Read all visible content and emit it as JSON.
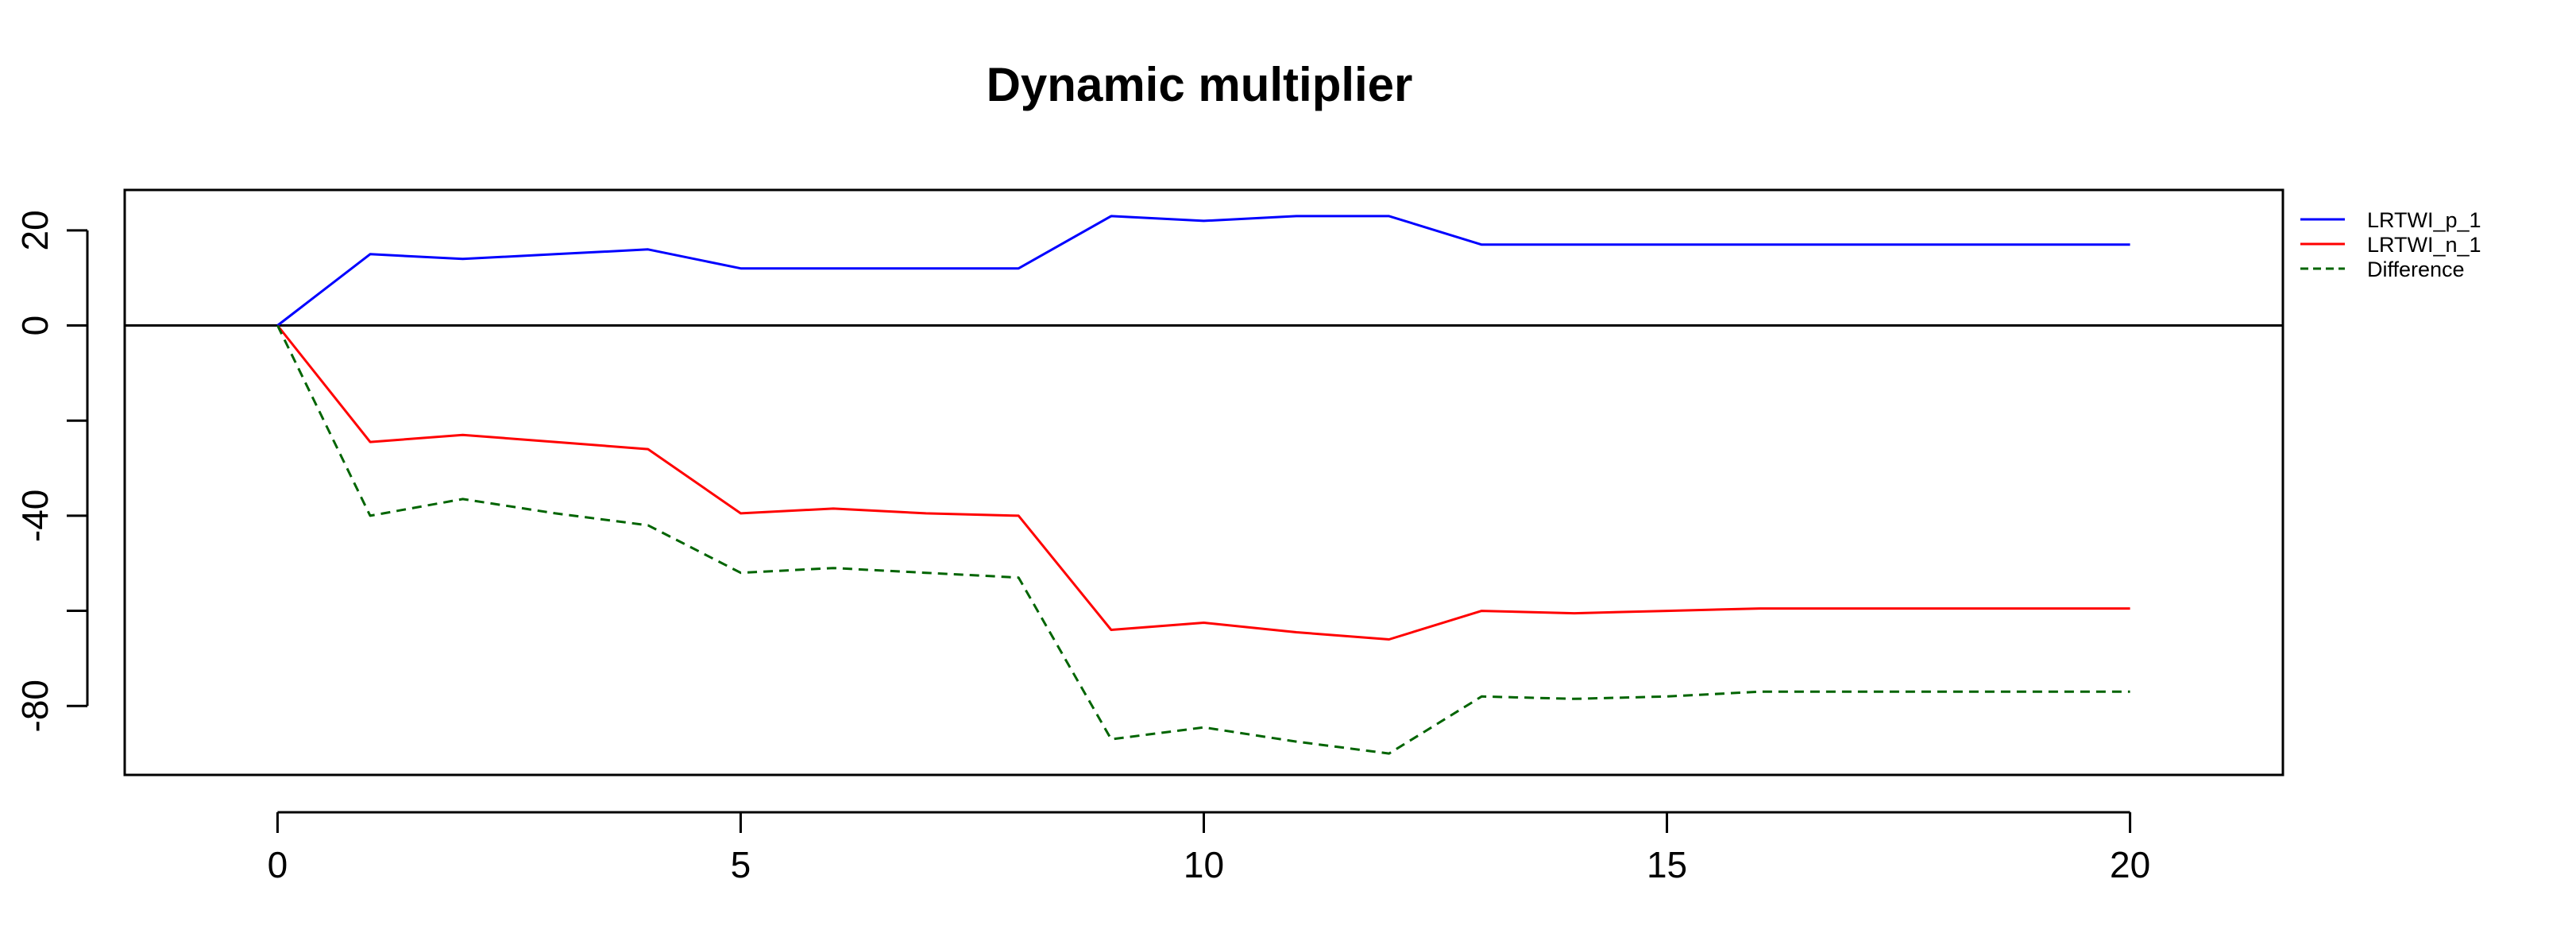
{
  "chart_data": {
    "type": "line",
    "title": "Dynamic multiplier",
    "xlabel": "",
    "ylabel": "",
    "xlim": [
      -1.65,
      21.65
    ],
    "ylim": [
      -94.5,
      28.5
    ],
    "x_ticks": [
      {
        "value": 0,
        "label": "0"
      },
      {
        "value": 5,
        "label": "5"
      },
      {
        "value": 10,
        "label": "10"
      },
      {
        "value": 15,
        "label": "15"
      },
      {
        "value": 20,
        "label": "20"
      }
    ],
    "y_ticks": [
      {
        "value": 20,
        "label": "20"
      },
      {
        "value": 0,
        "label": "0"
      },
      {
        "value": -20,
        "label": ""
      },
      {
        "value": -40,
        "label": "-40"
      },
      {
        "value": -60,
        "label": ""
      },
      {
        "value": -80,
        "label": "-80"
      }
    ],
    "hline": 0,
    "grid": false,
    "legend_position": "right",
    "x": [
      0,
      1,
      2,
      3,
      4,
      5,
      6,
      7,
      8,
      9,
      10,
      11,
      12,
      13,
      14,
      15,
      16,
      17,
      18,
      19,
      20
    ],
    "series": [
      {
        "name": "LRTWI_p_1",
        "color": "#0000ff",
        "dash": "solid",
        "values": [
          0,
          15,
          14,
          15,
          16,
          12,
          12,
          12,
          12,
          23,
          22,
          23,
          23,
          17,
          17,
          17,
          17,
          17,
          17,
          17,
          17
        ]
      },
      {
        "name": "LRTWI_n_1",
        "color": "#ff0000",
        "dash": "solid",
        "values": [
          0,
          -24.5,
          -23,
          -24.5,
          -26,
          -39.5,
          -38.5,
          -39.5,
          -40,
          -64,
          -62.5,
          -64.5,
          -66,
          -60,
          -60.5,
          -60,
          -59.5,
          -59.5,
          -59.5,
          -59.5,
          -59.5
        ]
      },
      {
        "name": "Difference",
        "color": "#006400",
        "dash": "dashed",
        "values": [
          0,
          -40,
          -36.5,
          -39.5,
          -42,
          -52,
          -51,
          -52,
          -53,
          -87,
          -84.5,
          -87.5,
          -90,
          -78,
          -78.5,
          -78,
          -77,
          -77,
          -77,
          -77,
          -77
        ]
      }
    ]
  }
}
